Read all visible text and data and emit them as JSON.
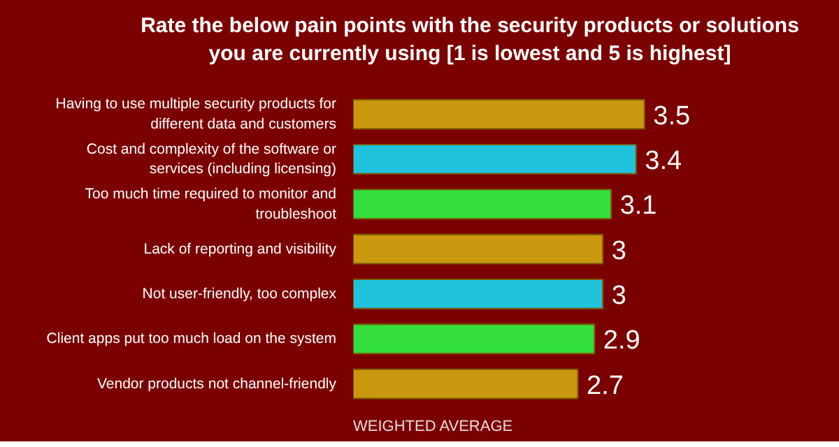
{
  "chart_data": {
    "type": "bar",
    "orientation": "horizontal",
    "title": "Rate the below pain points with the security products or solutions you are currently using [1 is lowest and 5 is highest]",
    "xlabel": "WEIGHTED AVERAGE",
    "categories": [
      "Having to use multiple security products for different data and customers",
      "Cost and complexity of the software or services (including licensing)",
      "Too much time required to monitor and troubleshoot",
      "Lack of reporting and visibility",
      "Not user-friendly, too complex",
      "Client apps put too much load on the system",
      "Vendor products not channel-friendly"
    ],
    "values": [
      3.5,
      3.4,
      3.1,
      3,
      3,
      2.9,
      2.7
    ],
    "colors": [
      "#c9980e",
      "#1fc3dc",
      "#33dd3a",
      "#c9980e",
      "#1fc3dc",
      "#33dd3a",
      "#c9980e"
    ],
    "data_labels": true,
    "grid": false
  }
}
